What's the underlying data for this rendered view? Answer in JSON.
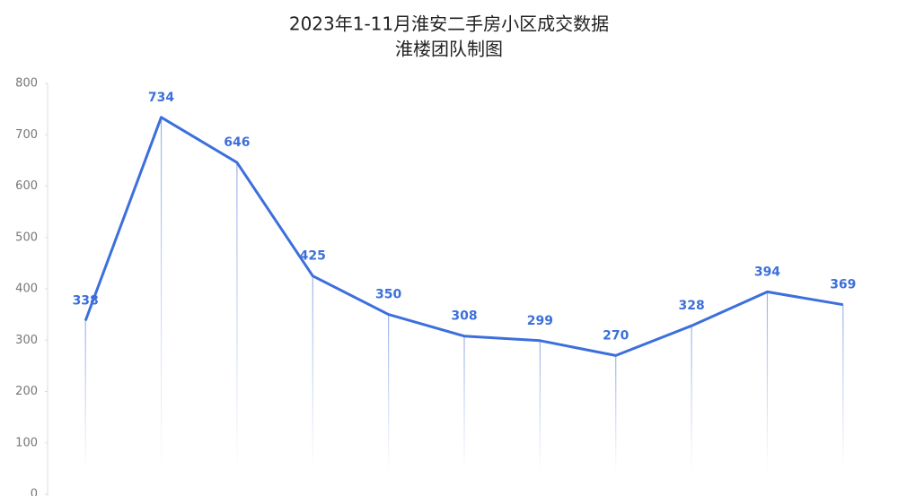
{
  "chart_data": {
    "type": "line",
    "title": "2023年1-11月淮安二手房小区成交数据",
    "subtitle": "淮楼团队制图",
    "categories": [
      null,
      null,
      null,
      null,
      null,
      null,
      null,
      null,
      null,
      null,
      null
    ],
    "series": [
      {
        "color": "#3d6fdc",
        "values": [
          338,
          734,
          646,
          425,
          350,
          308,
          299,
          270,
          328,
          394,
          369
        ]
      }
    ],
    "ylim": [
      0,
      800
    ],
    "yticks": [
      0,
      100,
      200,
      300,
      400,
      500,
      600,
      700,
      800
    ]
  }
}
